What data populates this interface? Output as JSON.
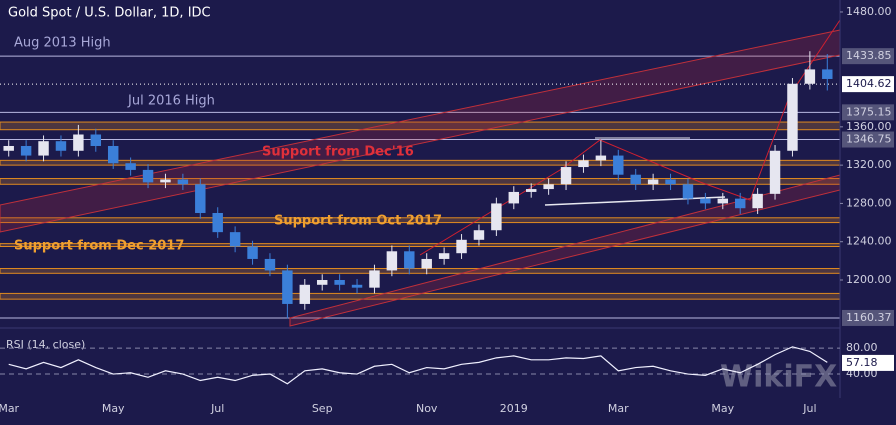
{
  "chart_data": {
    "type": "candlestick",
    "title": "Gold Spot / U.S. Dollar, 1D, IDC",
    "categories": [
      "Mar",
      null,
      null,
      null,
      null,
      null,
      "May",
      null,
      null,
      null,
      null,
      null,
      "Jul",
      null,
      null,
      null,
      null,
      null,
      "Sep",
      null,
      null,
      null,
      null,
      null,
      "Nov",
      null,
      null,
      null,
      null,
      "2019",
      null,
      null,
      null,
      null,
      null,
      "Mar",
      null,
      null,
      null,
      null,
      null,
      "May",
      null,
      null,
      null,
      null,
      "Jul",
      null
    ],
    "open": [
      1335,
      1340,
      1330,
      1345,
      1335,
      1352,
      1340,
      1322,
      1315,
      1302,
      1305,
      1300,
      1270,
      1250,
      1235,
      1222,
      1210,
      1175,
      1195,
      1200,
      1195,
      1192,
      1210,
      1230,
      1212,
      1222,
      1228,
      1242,
      1252,
      1280,
      1292,
      1295,
      1300,
      1318,
      1325,
      1330,
      1310,
      1300,
      1305,
      1300,
      1285,
      1280,
      1285,
      1275,
      1290,
      1335,
      1405,
      1420
    ],
    "high": [
      1346,
      1346,
      1351,
      1351,
      1362,
      1358,
      1346,
      1328,
      1321,
      1311,
      1311,
      1306,
      1276,
      1256,
      1241,
      1228,
      1216,
      1201,
      1206,
      1206,
      1201,
      1216,
      1236,
      1236,
      1228,
      1234,
      1248,
      1258,
      1286,
      1298,
      1301,
      1306,
      1324,
      1331,
      1346,
      1336,
      1316,
      1311,
      1311,
      1306,
      1291,
      1291,
      1291,
      1296,
      1341,
      1411,
      1439,
      1436
    ],
    "low": [
      1329,
      1324,
      1324,
      1329,
      1329,
      1334,
      1316,
      1309,
      1296,
      1296,
      1294,
      1264,
      1244,
      1229,
      1216,
      1204,
      1160,
      1169,
      1189,
      1189,
      1186,
      1186,
      1204,
      1206,
      1206,
      1216,
      1222,
      1236,
      1246,
      1274,
      1286,
      1289,
      1294,
      1312,
      1319,
      1304,
      1294,
      1294,
      1294,
      1279,
      1274,
      1274,
      1269,
      1269,
      1284,
      1329,
      1399,
      1398
    ],
    "close": [
      1340,
      1330,
      1345,
      1335,
      1352,
      1340,
      1322,
      1315,
      1302,
      1305,
      1300,
      1270,
      1250,
      1235,
      1222,
      1210,
      1175,
      1195,
      1200,
      1195,
      1192,
      1210,
      1230,
      1212,
      1222,
      1228,
      1242,
      1252,
      1280,
      1292,
      1295,
      1300,
      1318,
      1325,
      1330,
      1310,
      1300,
      1305,
      1300,
      1285,
      1280,
      1285,
      1275,
      1290,
      1335,
      1405,
      1420,
      1410
    ],
    "up_color": "#e6e6f0",
    "down_color": "#3b7fd9",
    "ylim": [
      1153,
      1492.5
    ],
    "yticks": [
      {
        "value": 1480,
        "label": "1480.00"
      },
      1433.85,
      1375.15,
      {
        "value": 1360,
        "label": "1360.00"
      },
      1346.75,
      {
        "value": 1320,
        "label": "1320.00"
      },
      {
        "value": 1280,
        "label": "1280.00"
      },
      {
        "value": 1240,
        "label": "1240.00"
      },
      {
        "value": 1200,
        "label": "1200.00"
      },
      1160.37
    ],
    "current_price": 1404.62,
    "support_bands": [
      [
        1357,
        1365
      ],
      [
        1320,
        1325
      ],
      [
        1300,
        1306
      ],
      [
        1260,
        1265
      ],
      [
        1235,
        1238
      ],
      [
        1207,
        1212
      ],
      [
        1180,
        1186
      ]
    ],
    "annotations": [
      "Aug 2013 High",
      "Jul 2016 High",
      "Support from Dec'16",
      "Support from Oct 2017",
      "Support from Dec 2017"
    ],
    "rsi": {
      "title": "RSI (14, close)",
      "values": [
        55,
        48,
        58,
        50,
        62,
        50,
        40,
        42,
        35,
        45,
        40,
        30,
        35,
        30,
        38,
        40,
        25,
        45,
        48,
        42,
        40,
        52,
        55,
        42,
        50,
        48,
        55,
        58,
        65,
        68,
        62,
        62,
        65,
        64,
        68,
        45,
        50,
        52,
        45,
        40,
        38,
        48,
        42,
        55,
        70,
        82,
        75,
        58
      ],
      "ylim": [
        3,
        108
      ],
      "yticks": [
        {
          "value": 80,
          "label": "80.00"
        },
        {
          "value": 40,
          "label": "40.00"
        }
      ],
      "current": 57.18
    },
    "watermark": "WikiFX"
  }
}
